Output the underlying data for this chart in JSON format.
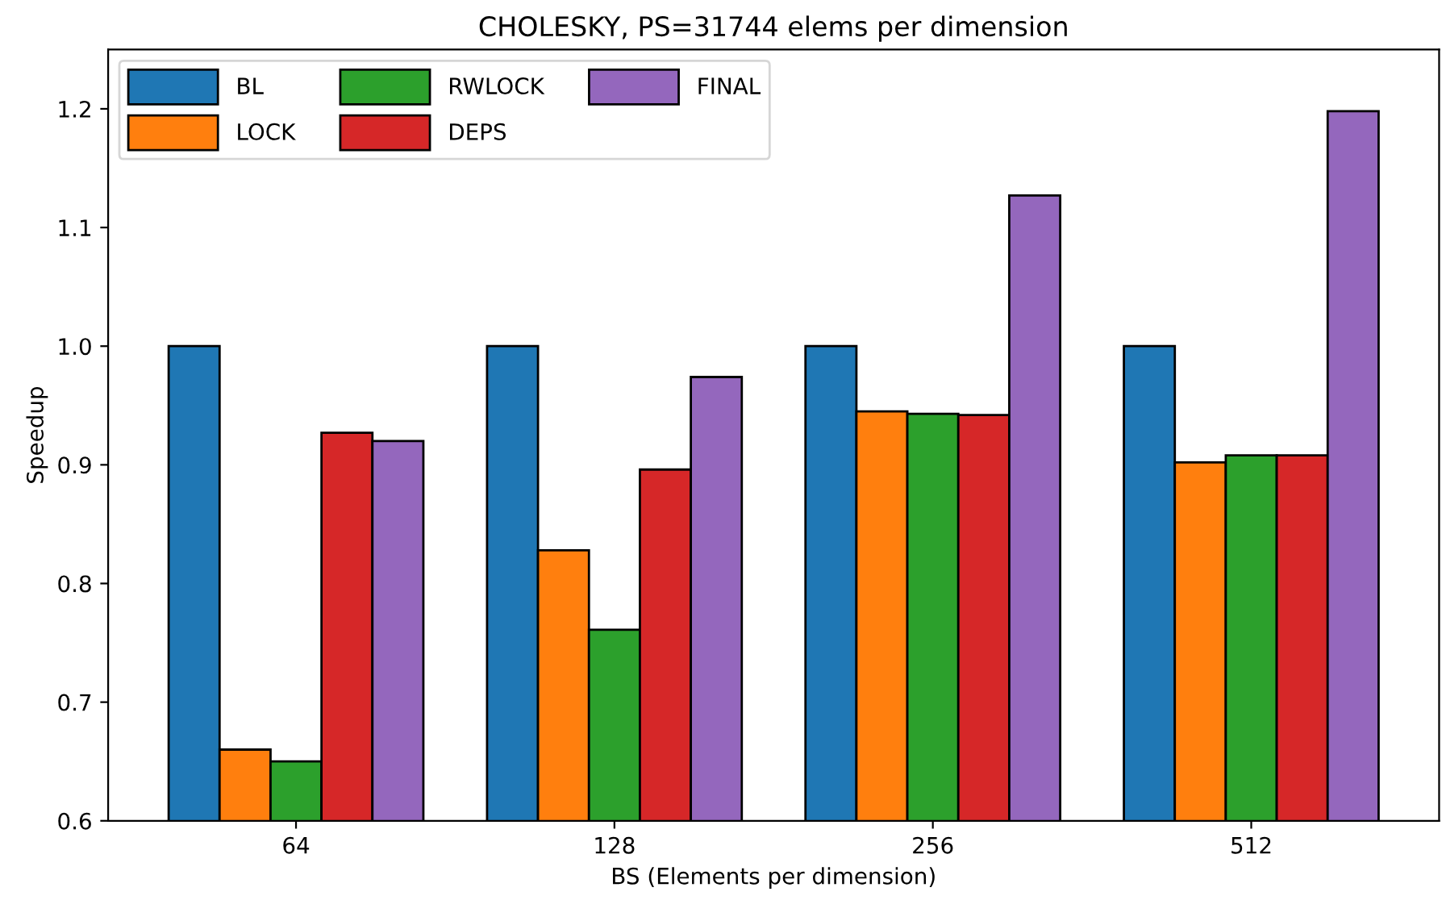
{
  "chart_data": {
    "type": "bar",
    "title": "CHOLESKY, PS=31744 elems per dimension",
    "xlabel": "BS (Elements per dimension)",
    "ylabel": "Speedup",
    "categories": [
      "64",
      "128",
      "256",
      "512"
    ],
    "series": [
      {
        "name": "BL",
        "color": "#1f77b4",
        "values": [
          1.0,
          1.0,
          1.0,
          1.0
        ]
      },
      {
        "name": "LOCK",
        "color": "#ff7f0e",
        "values": [
          0.66,
          0.828,
          0.945,
          0.902
        ]
      },
      {
        "name": "RWLOCK",
        "color": "#2ca02c",
        "values": [
          0.65,
          0.761,
          0.943,
          0.908
        ]
      },
      {
        "name": "DEPS",
        "color": "#d62728",
        "values": [
          0.927,
          0.896,
          0.942,
          0.908
        ]
      },
      {
        "name": "FINAL",
        "color": "#9467bd",
        "values": [
          0.92,
          0.974,
          1.127,
          1.198
        ]
      }
    ],
    "ylim": [
      0.6,
      1.25
    ],
    "yticks": [
      0.6,
      0.7,
      0.8,
      0.9,
      {
        "value": 1.0,
        "label": "1.0"
      },
      1.1,
      1.2
    ],
    "legend": "top left"
  }
}
